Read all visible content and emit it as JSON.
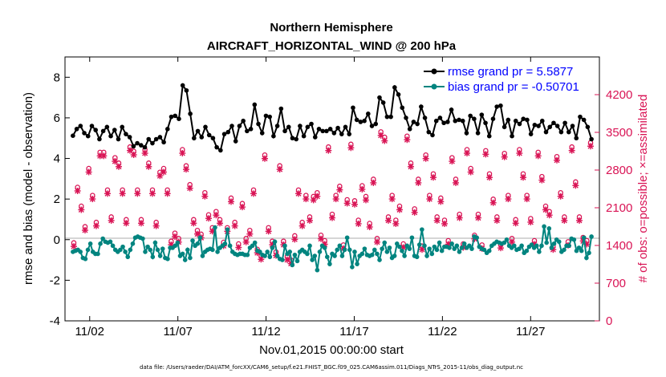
{
  "chart_data": {
    "type": "line",
    "title_line1": "Northern Hemisphere",
    "title_line2": "AIRCRAFT_HORIZONTAL_WIND @ 200 hPa",
    "xlabel": "Nov.01,2015 00:00:00 start",
    "ylabel_left": "rmse and bias (model - observation)",
    "ylabel_right": "# of obs: o=possible; ×=assimilated",
    "footnote": "data file: /Users/raeder/DAI/ATM_forcXX/CAM6_setup/f.e21.FHIST_BGC.f09_025.CAM6assim.011/Diags_NTrS_2015-11/obs_diag_output.nc",
    "x_range": [
      0.6,
      30.9
    ],
    "ylim_left": [
      -4,
      9
    ],
    "ylim_right": [
      0,
      4900
    ],
    "x_ticks": [
      {
        "x": 2,
        "label": "11/02"
      },
      {
        "x": 7,
        "label": "11/07"
      },
      {
        "x": 12,
        "label": "11/12"
      },
      {
        "x": 17,
        "label": "11/17"
      },
      {
        "x": 22,
        "label": "11/22"
      },
      {
        "x": 27,
        "label": "11/27"
      }
    ],
    "y_ticks_left": [
      "-4",
      "-2",
      "0",
      "2",
      "4",
      "6",
      "8"
    ],
    "y_ticks_right": [
      "0",
      "700",
      "1400",
      "2100",
      "2800",
      "3500",
      "4200"
    ],
    "colors": {
      "rmse": "#000000",
      "bias": "#00847f",
      "obs": "#d91455",
      "legend_text": "#0000ff",
      "zero_line": "#c8c8c8"
    },
    "legend": {
      "rmse_label": "rmse grand pr = 5.5877",
      "bias_label": "bias grand pr = -0.50701"
    },
    "series": [
      {
        "name": "rmse",
        "values": [
          5.12,
          5.45,
          5.6,
          5.25,
          5.1,
          5.6,
          5.4,
          4.95,
          5.35,
          5.55,
          5.1,
          5.4,
          4.95,
          5.55,
          5.2,
          5.05,
          4.6,
          4.75,
          4.65,
          4.55,
          4.95,
          4.75,
          4.95,
          5.05,
          4.8,
          5.45,
          6.05,
          6.1,
          5.95,
          7.6,
          7.35,
          6.2,
          5.0,
          5.35,
          5.05,
          5.55,
          5.15,
          5.0,
          4.55,
          4.4,
          5.2,
          5.3,
          5.6,
          4.85,
          5.6,
          5.85,
          5.35,
          5.45,
          6.65,
          5.7,
          5.25,
          6.1,
          6.05,
          5.1,
          5.6,
          6.45,
          5.35,
          5.55,
          5.0,
          4.95,
          5.6,
          5.1,
          5.55,
          5.7,
          5.05,
          5.45,
          5.35,
          5.35,
          5.45,
          5.25,
          5.5,
          5.2,
          5.55,
          5.2,
          6.5,
          5.9,
          5.8,
          5.85,
          6.2,
          5.6,
          5.7,
          7.0,
          6.75,
          6.05,
          6.05,
          7.5,
          7.15,
          6.5,
          6.0,
          5.45,
          5.8,
          5.7,
          6.55,
          6.0,
          5.3,
          5.15,
          5.85,
          6.0,
          5.75,
          5.8,
          6.4,
          5.85,
          5.9,
          5.85,
          5.25,
          6.1,
          5.95,
          5.25,
          6.15,
          5.75,
          5.1,
          5.95,
          6.55,
          6.6,
          5.55,
          5.9,
          5.1,
          5.85,
          5.7,
          5.95,
          5.9,
          5.2,
          5.65,
          5.6,
          5.85,
          5.3,
          5.55,
          5.75,
          5.6,
          5.3,
          5.75,
          5.3,
          5.6,
          5.0,
          6.05,
          5.9,
          5.55,
          4.95
        ]
      },
      {
        "name": "bias",
        "values": [
          -0.6,
          -0.55,
          -0.5,
          -0.6,
          -0.9,
          -0.95,
          -0.5,
          -0.2,
          -0.6,
          -0.7,
          -0.7,
          -0.2,
          0.05,
          -0.1,
          -0.15,
          -0.1,
          -0.3,
          -0.5,
          -0.6,
          -0.5,
          -0.35,
          -0.6,
          -0.85,
          -0.5,
          -0.2,
          0.1,
          0.15,
          0.1,
          0.05,
          -0.6,
          -0.35,
          -0.5,
          -0.85,
          -0.15,
          -0.5,
          -0.8,
          -0.45,
          -0.9,
          -0.95,
          -0.4,
          -0.4,
          -0.3,
          -0.15,
          -0.8,
          -0.7,
          -1.0,
          -0.5,
          -0.9,
          -0.05,
          -0.3,
          -0.2,
          0.1,
          -0.8,
          -0.6,
          -0.5,
          -0.45,
          -0.5,
          0.6,
          -0.6,
          -0.4,
          -0.3,
          -0.2,
          0.5,
          -0.3,
          -0.6,
          -0.7,
          -0.75,
          -0.7,
          -0.7,
          -0.75,
          -0.75,
          -0.4,
          -0.3,
          -0.15,
          -0.55,
          -0.6,
          -0.75,
          -0.8,
          -0.6,
          -0.85,
          -0.4,
          -0.1,
          -0.8,
          -0.95,
          -1.0,
          -0.3,
          -0.7,
          -0.6,
          -1.25,
          -0.75,
          -1.05,
          -0.6,
          -0.5,
          -0.6,
          -0.7,
          -0.3,
          -1.0,
          -0.8,
          -1.5,
          -0.6,
          -0.3,
          -0.4,
          -0.85,
          -1.2,
          -0.7,
          -0.8,
          -0.5,
          -0.3,
          -0.8,
          -0.5,
          0.1,
          -0.5,
          -1.35,
          -0.6,
          -1.2,
          -0.8,
          -0.7,
          -0.45,
          -0.75,
          -0.8,
          -0.75,
          -0.5,
          -0.7,
          -1.0,
          -0.45,
          -0.15,
          -0.6,
          -0.4,
          -0.9,
          -0.8,
          -0.2,
          -0.35,
          -0.55,
          -0.8,
          -0.3,
          -0.45,
          0.1,
          -0.8,
          -0.85,
          -0.25,
          0.5,
          -0.3,
          -0.8,
          -0.45,
          -0.7,
          -0.35,
          -0.5,
          -0.15,
          -0.55,
          -0.35,
          -0.35,
          -0.4,
          -0.2,
          -0.45,
          -0.3,
          -0.6,
          -0.4,
          -0.2,
          -0.4,
          -0.3,
          -0.45,
          0.15,
          0.1,
          -0.35,
          -0.45,
          -0.5,
          -0.65,
          -0.55,
          -0.3,
          -0.2,
          -0.1,
          -0.15,
          -0.2,
          -0.15,
          0.0,
          -0.3,
          -0.4,
          -0.3,
          -0.5,
          -0.45,
          -0.3,
          -0.65,
          -0.55,
          -0.35,
          -0.25,
          -0.4,
          -0.3,
          -0.6,
          -0.3,
          0.65,
          -0.15,
          0.55,
          -0.4,
          -0.2,
          0.0,
          -0.1,
          -0.6,
          -0.5,
          -0.3,
          -0.3,
          0.05,
          0.0,
          -0.55,
          -0.4,
          -0.55,
          0.1,
          -0.9,
          -0.65,
          0.15
        ]
      },
      {
        "name": "obs_possible",
        "values": [
          1420,
          2450,
          2100,
          1720,
          2800,
          2300,
          1800,
          3100,
          3100,
          2400,
          1900,
          3000,
          2900,
          2400,
          1850,
          3200,
          3120,
          2400,
          1850,
          3150,
          2900,
          2400,
          1800,
          2730,
          2800,
          2400,
          1450,
          1600,
          1500,
          3150,
          2850,
          2500,
          1850,
          1650,
          1580,
          2350,
          1940,
          1700,
          2000,
          1850,
          1430,
          1700,
          2250,
          1800,
          1400,
          2150,
          1500,
          1650,
          2400,
          1300,
          1180,
          3050,
          1700,
          1450,
          1250,
          2850,
          1450,
          1170,
          1100,
          1550,
          2400,
          1800,
          2300,
          1900,
          2280,
          2350,
          1560,
          1460,
          3200,
          1950,
          2300,
          2470,
          1380,
          2220,
          3250,
          2200,
          1840,
          2480,
          2280,
          1780,
          2600,
          1500,
          3480,
          3380,
          1900,
          2300,
          1840,
          2100,
          1400,
          3400,
          2900,
          2050,
          2600,
          1360,
          3050,
          2300,
          2700,
          1900,
          2250,
          1840,
          1460,
          3000,
          2600,
          1950,
          1400,
          3150,
          2800,
          1560,
          1950,
          1380,
          3130,
          2700,
          2230,
          1900,
          1390,
          3080,
          2300,
          1500,
          1850,
          3150,
          2700,
          2300,
          1870,
          1460,
          3100,
          2650,
          2100,
          2000,
          1360,
          3020,
          2350,
          1900,
          1440,
          3200,
          2550,
          1900,
          1520,
          1460,
          3280
        ]
      }
    ]
  }
}
